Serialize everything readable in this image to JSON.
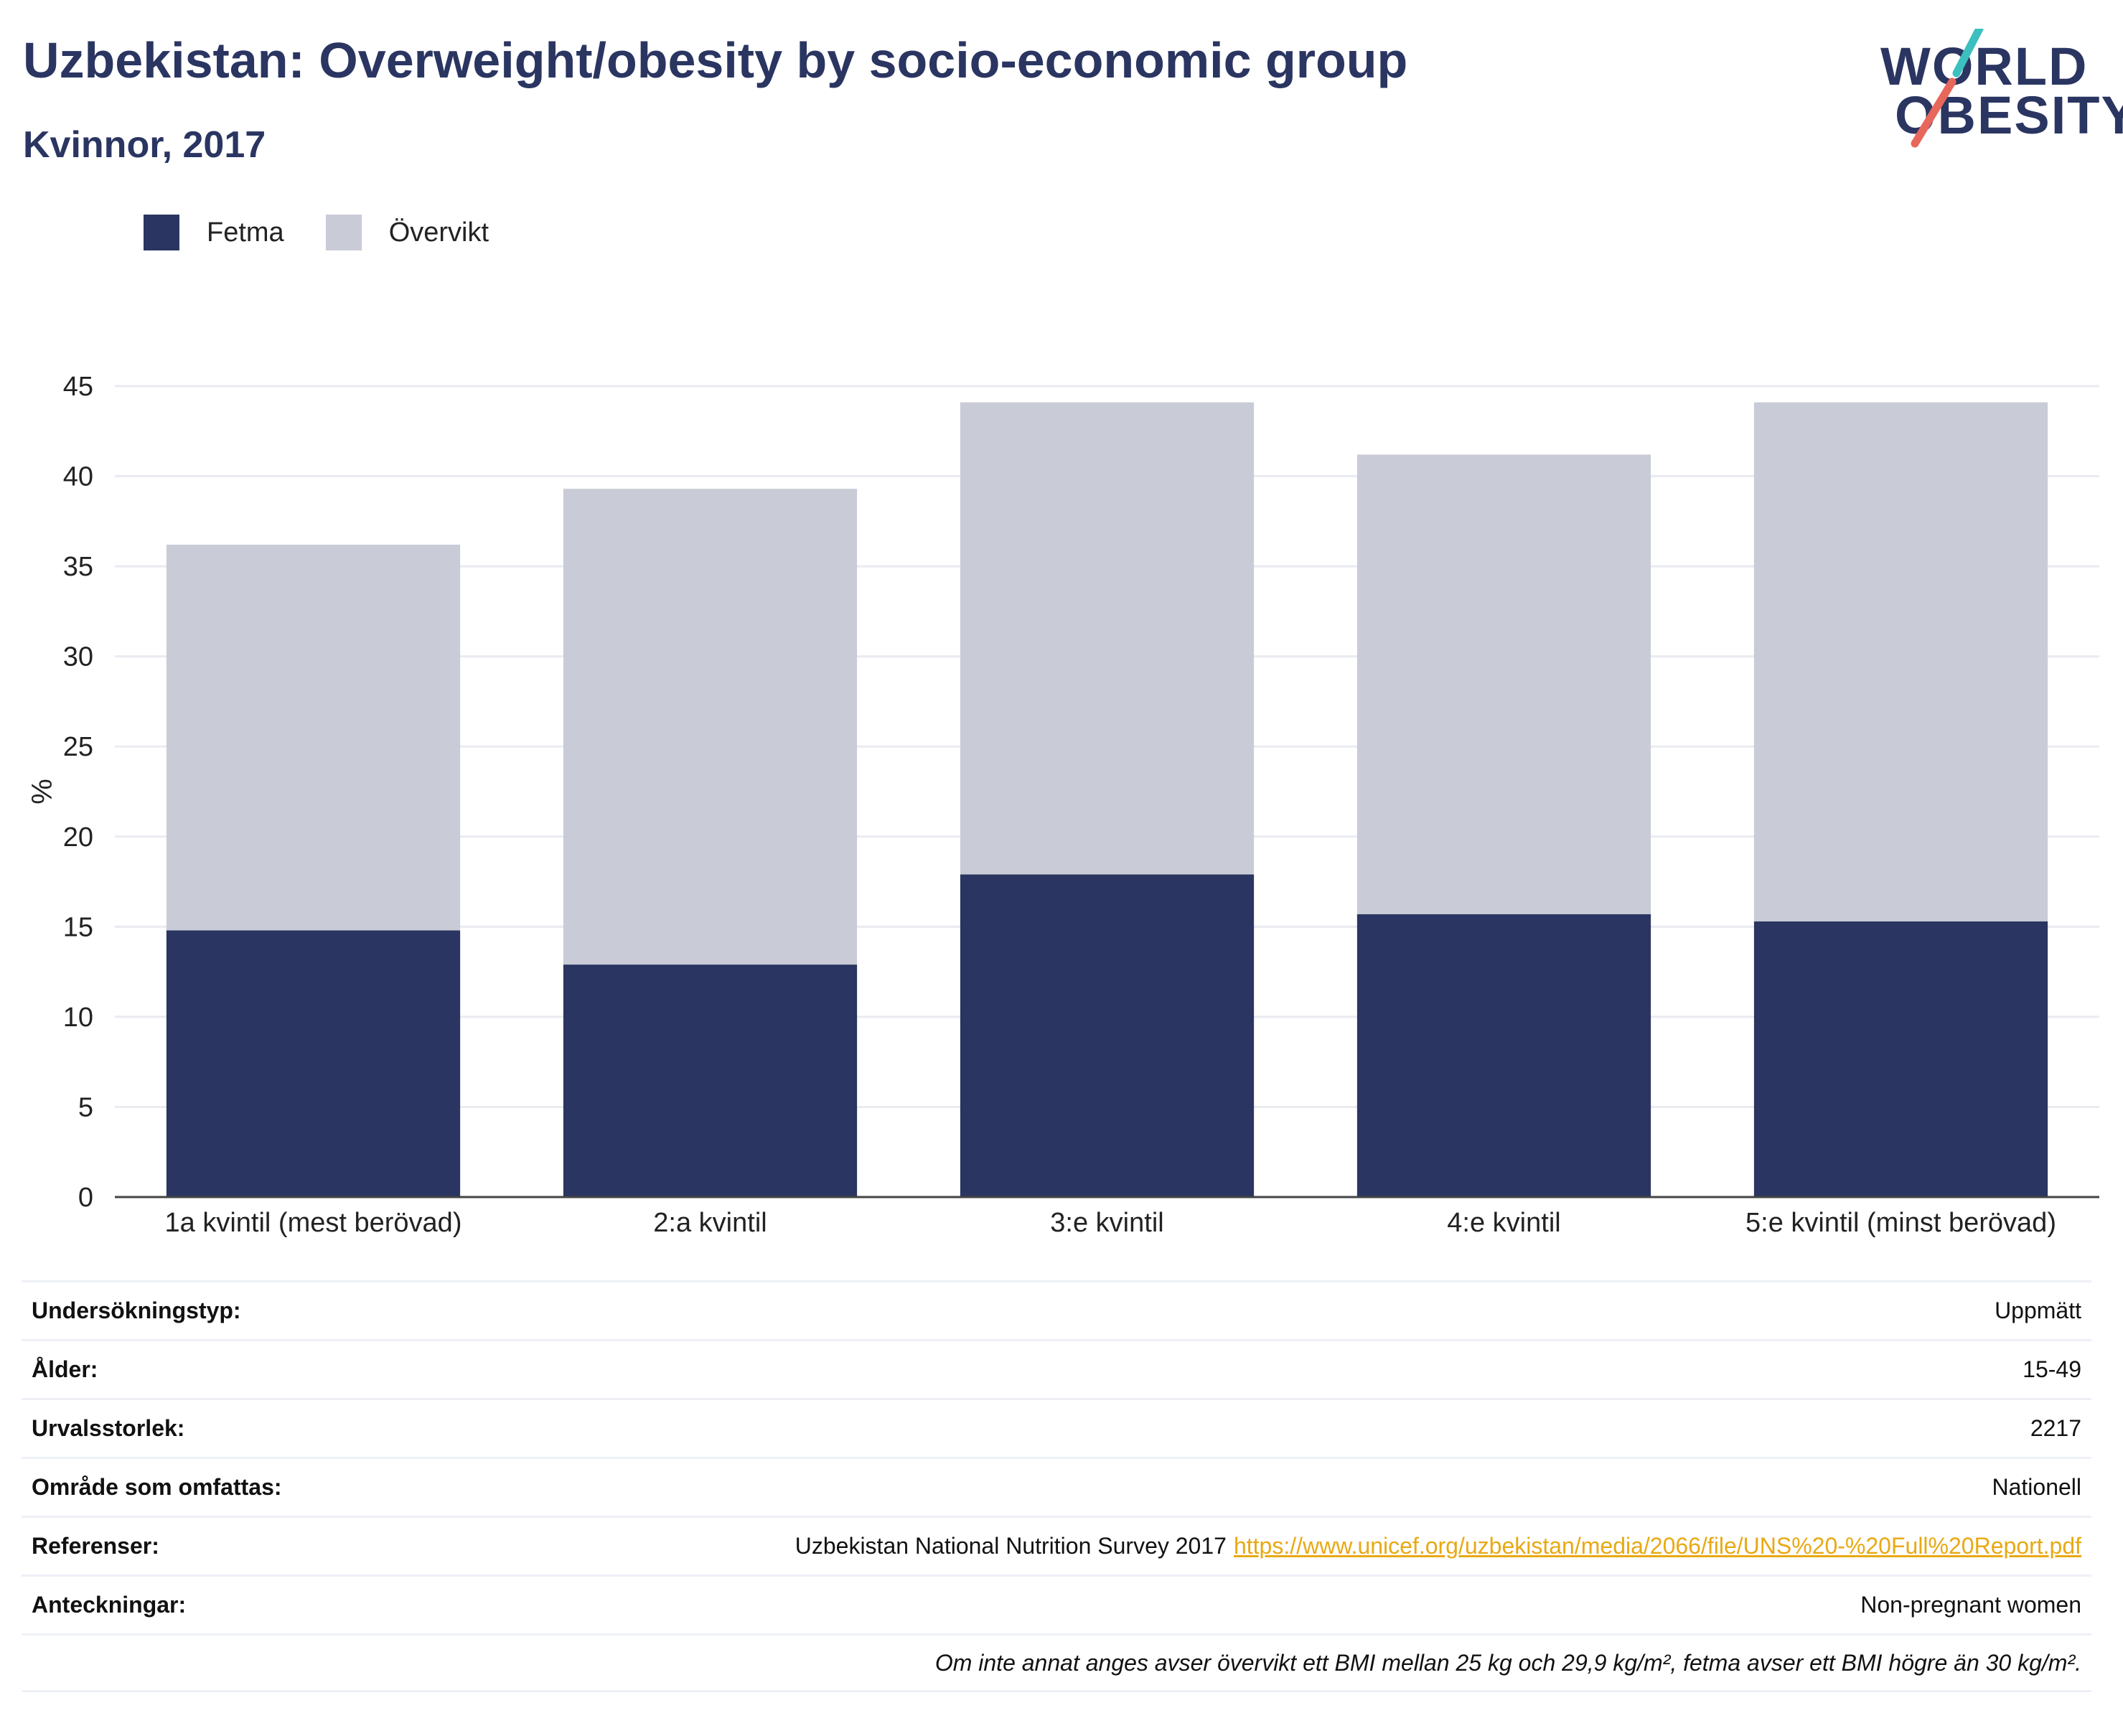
{
  "header": {
    "title": "Uzbekistan: Overweight/obesity by socio-economic group",
    "subtitle": "Kvinnor, 2017"
  },
  "logo": {
    "line1": "WORLD",
    "line2": "OBESITY"
  },
  "colors": {
    "title": "#2a3561",
    "fetma": "#2a3561",
    "overvikt": "#c9ccd7",
    "link": "#e8a912",
    "logo_teal": "#3bbfbf",
    "logo_coral": "#e8675b"
  },
  "legend": [
    {
      "label": "Fetma",
      "color": "#2a3561"
    },
    {
      "label": "Övervikt",
      "color": "#c9ccd7"
    }
  ],
  "chart_data": {
    "type": "bar",
    "stacked": true,
    "categories": [
      "1a kvintil (mest berövad)",
      "2:a kvintil",
      "3:e kvintil",
      "4:e kvintil",
      "5:e kvintil (minst berövad)"
    ],
    "series": [
      {
        "name": "Fetma",
        "values": [
          14.8,
          12.9,
          17.9,
          15.7,
          15.3
        ]
      },
      {
        "name": "Övervikt",
        "values": [
          21.4,
          26.4,
          26.2,
          25.5,
          28.8
        ]
      }
    ],
    "ylabel": "%",
    "ylim": [
      0,
      45
    ],
    "yticks": [
      0,
      5,
      10,
      15,
      20,
      25,
      30,
      35,
      40,
      45
    ],
    "grid": true,
    "legend_position": "top-left"
  },
  "info": {
    "rows": [
      {
        "key": "Undersökningstyp:",
        "value": "Uppmätt"
      },
      {
        "key": "Ålder:",
        "value": "15-49"
      },
      {
        "key": "Urvalsstorlek:",
        "value": "2217"
      },
      {
        "key": "Område som omfattas:",
        "value": "Nationell"
      },
      {
        "key": "Referenser:",
        "value": "Uzbekistan National Nutrition Survey 2017",
        "link": "https://www.unicef.org/uzbekistan/media/2066/file/UNS%20-%20Full%20Report.pdf"
      },
      {
        "key": "Anteckningar:",
        "value": "Non-pregnant women"
      }
    ],
    "footnote": "Om inte annat anges avser övervikt ett BMI mellan 25 kg och 29,9 kg/m², fetma avser ett BMI högre än 30 kg/m²."
  }
}
